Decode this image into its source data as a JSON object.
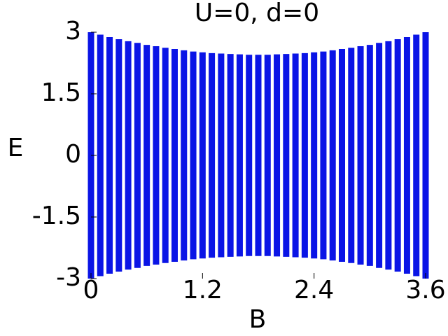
{
  "chart_data": {
    "type": "range",
    "title": "U=0, d=0",
    "x_label": "B",
    "y_label": "E",
    "x": [
      0,
      0.1,
      0.2,
      0.3,
      0.4,
      0.5,
      0.6,
      0.7,
      0.8,
      0.9,
      1.0,
      1.1,
      1.2,
      1.3,
      1.4,
      1.5,
      1.6,
      1.7,
      1.8,
      1.9,
      2.0,
      2.1,
      2.2,
      2.3,
      2.4,
      2.5,
      2.6,
      2.7,
      2.8,
      2.9,
      3.0,
      3.1,
      3.2,
      3.3,
      3.4,
      3.5,
      3.6
    ],
    "high": [
      3.0,
      2.94,
      2.88,
      2.83,
      2.78,
      2.74,
      2.69,
      2.66,
      2.62,
      2.59,
      2.56,
      2.53,
      2.51,
      2.49,
      2.48,
      2.47,
      2.46,
      2.45,
      2.45,
      2.45,
      2.46,
      2.47,
      2.48,
      2.49,
      2.51,
      2.53,
      2.56,
      2.59,
      2.62,
      2.66,
      2.69,
      2.74,
      2.78,
      2.83,
      2.88,
      2.94,
      3.0
    ],
    "low": [
      -3.0,
      -2.94,
      -2.88,
      -2.83,
      -2.78,
      -2.74,
      -2.69,
      -2.66,
      -2.62,
      -2.59,
      -2.56,
      -2.53,
      -2.51,
      -2.49,
      -2.48,
      -2.47,
      -2.46,
      -2.45,
      -2.45,
      -2.45,
      -2.46,
      -2.47,
      -2.48,
      -2.49,
      -2.51,
      -2.53,
      -2.56,
      -2.59,
      -2.62,
      -2.66,
      -2.69,
      -2.74,
      -2.78,
      -2.83,
      -2.88,
      -2.94,
      -3.0
    ],
    "color": "#0a14e6",
    "xlim": [
      0,
      3.6
    ],
    "ylim": [
      -3,
      3
    ],
    "xticks": [
      0,
      1.2,
      2.4,
      3.6
    ],
    "yticks": [
      3,
      1.5,
      0,
      -1.5,
      -3
    ]
  }
}
